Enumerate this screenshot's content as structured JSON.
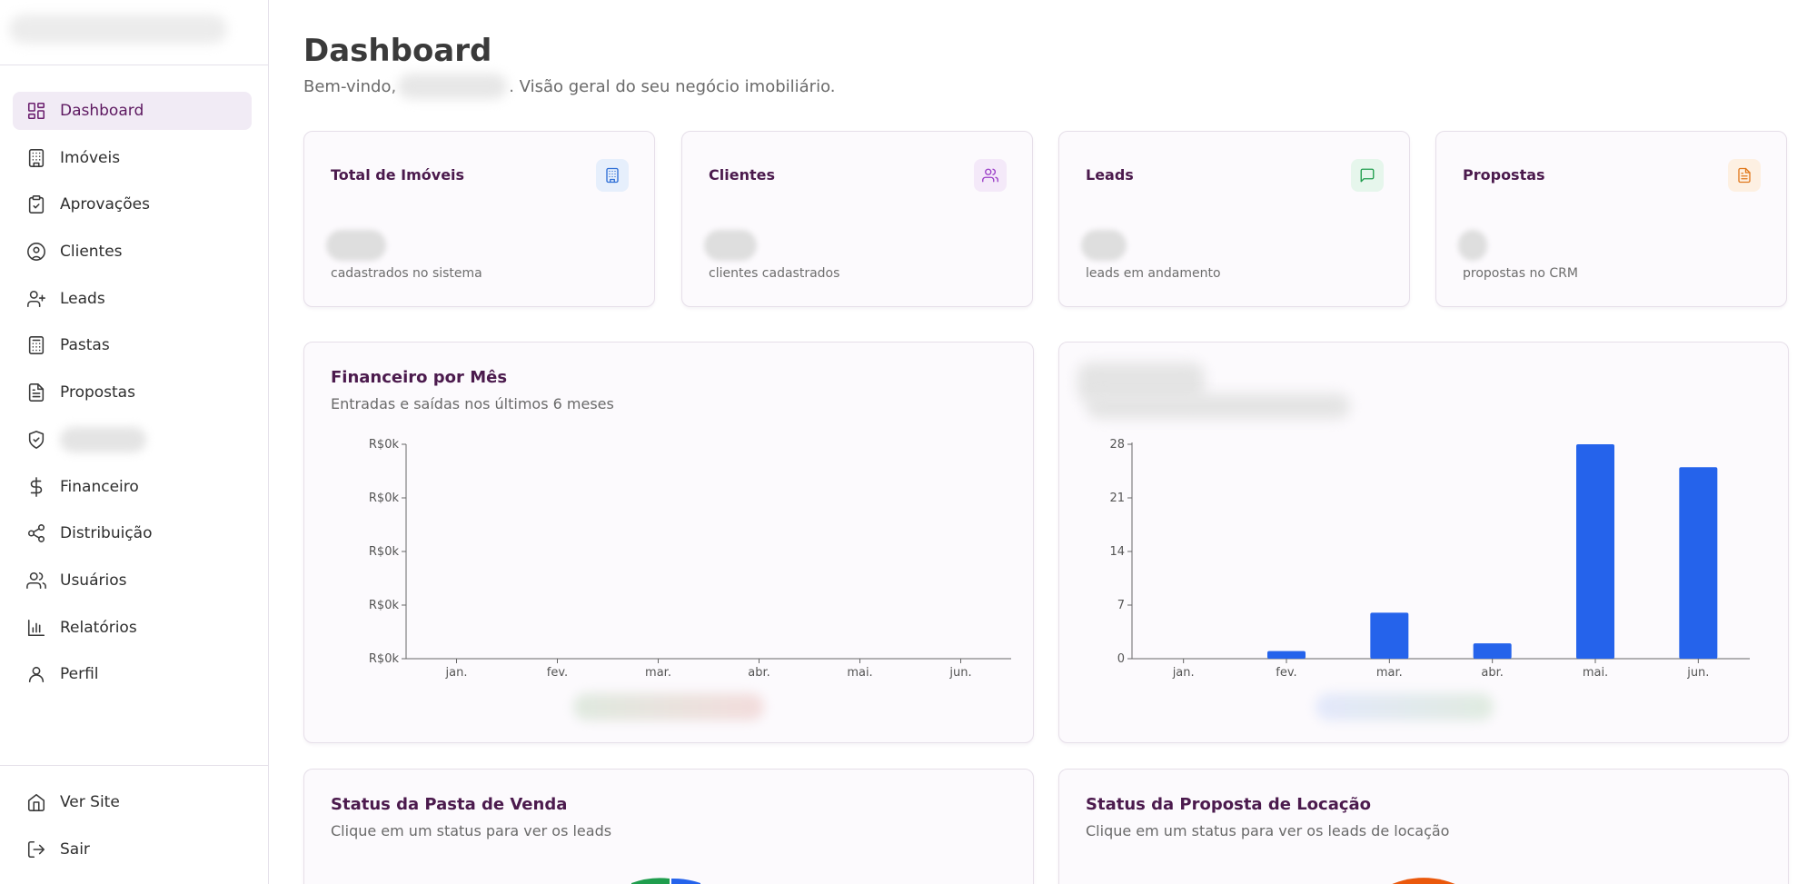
{
  "sidebar": {
    "items": [
      {
        "label": "Dashboard",
        "icon": "dashboard-icon",
        "active": true
      },
      {
        "label": "Imóveis",
        "icon": "building-icon"
      },
      {
        "label": "Aprovações",
        "icon": "clipboard-check-icon"
      },
      {
        "label": "Clientes",
        "icon": "user-circle-icon"
      },
      {
        "label": "Leads",
        "icon": "user-plus-icon"
      },
      {
        "label": "Pastas",
        "icon": "calculator-icon"
      },
      {
        "label": "Propostas",
        "icon": "file-text-icon"
      },
      {
        "label": "",
        "icon": "shield-check-icon"
      },
      {
        "label": "Financeiro",
        "icon": "dollar-icon"
      },
      {
        "label": "Distribuição",
        "icon": "share-icon"
      },
      {
        "label": "Usuários",
        "icon": "users-icon"
      },
      {
        "label": "Relatórios",
        "icon": "bar-chart-icon"
      },
      {
        "label": "Perfil",
        "icon": "user-icon"
      }
    ],
    "footer": [
      {
        "label": "Ver Site",
        "icon": "home-icon"
      },
      {
        "label": "Sair",
        "icon": "log-out-icon"
      }
    ]
  },
  "header": {
    "title": "Dashboard",
    "subtitle_prefix": "Bem-vindo,",
    "subtitle_suffix": ". Visão geral do seu negócio imobiliário."
  },
  "stats": [
    {
      "title": "Total de Imóveis",
      "desc": "cadastrados no sistema",
      "icon": "building-icon",
      "color": "#2f6fd6",
      "bg": "#e6effc"
    },
    {
      "title": "Clientes",
      "desc": "clientes cadastrados",
      "icon": "users-icon",
      "color": "#9b3fc7",
      "bg": "#f4e9f9"
    },
    {
      "title": "Leads",
      "desc": "leads em andamento",
      "icon": "message-icon",
      "color": "#1f9d4d",
      "bg": "#e6f6ec"
    },
    {
      "title": "Propostas",
      "desc": "propostas no CRM",
      "icon": "file-text-icon",
      "color": "#e0781c",
      "bg": "#fdf0e2"
    }
  ],
  "finance_panel": {
    "title": "Financeiro por Mês",
    "subtitle": "Entradas e saídas nos últimos 6 meses"
  },
  "status_venda": {
    "title": "Status da Pasta de Venda",
    "subtitle": "Clique em um status para ver os leads"
  },
  "status_locacao": {
    "title": "Status da Proposta de Locação",
    "subtitle": "Clique em um status para ver os leads de locação"
  },
  "chart_data": [
    {
      "type": "line",
      "title": "Financeiro por Mês",
      "categories": [
        "jan.",
        "fev.",
        "mar.",
        "abr.",
        "mai.",
        "jun."
      ],
      "y_tick_labels": [
        "R$0k",
        "R$0k",
        "R$0k",
        "R$0k",
        "R$0k"
      ],
      "series": [],
      "grid": false
    },
    {
      "type": "bar",
      "title": "",
      "categories": [
        "jan.",
        "fev.",
        "mar.",
        "abr.",
        "mai.",
        "jun."
      ],
      "values": [
        0,
        1,
        6,
        2,
        28,
        25
      ],
      "y_ticks": [
        0,
        7,
        14,
        21,
        28
      ],
      "ylim": [
        0,
        28
      ],
      "bar_color": "#2563eb",
      "grid": false
    }
  ]
}
